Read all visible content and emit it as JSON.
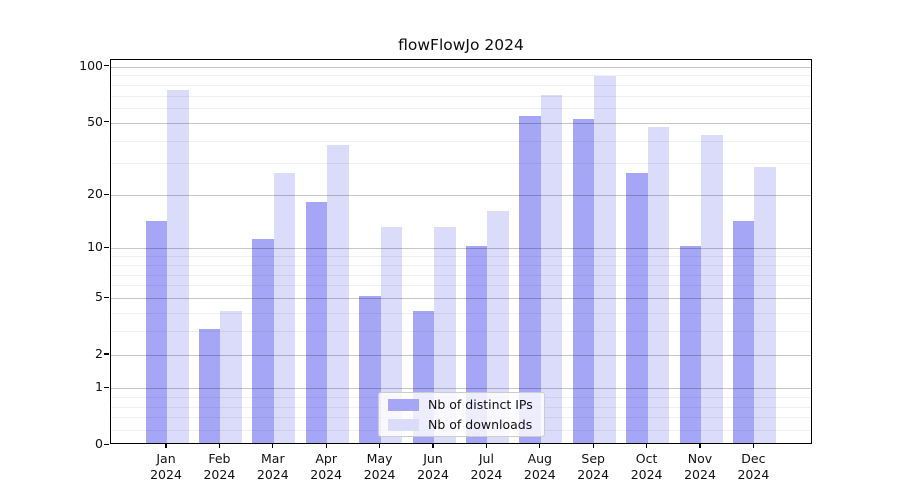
{
  "title": "flowFlowJo 2024",
  "chart_data": {
    "type": "bar",
    "title": "flowFlowJo 2024",
    "categories": [
      "Jan 2024",
      "Feb 2024",
      "Mar 2024",
      "Apr 2024",
      "May 2024",
      "Jun 2024",
      "Jul 2024",
      "Aug 2024",
      "Sep 2024",
      "Oct 2024",
      "Nov 2024",
      "Dec 2024"
    ],
    "series": [
      {
        "name": "Nb of distinct IPs",
        "color": "#a6a6f7",
        "values": [
          14,
          3,
          11,
          18,
          5,
          4,
          10,
          53,
          51,
          26,
          10,
          14
        ]
      },
      {
        "name": "Nb of downloads",
        "color": "#dbdbfa",
        "values": [
          73,
          4,
          26,
          37,
          13,
          13,
          16,
          69,
          87,
          46,
          42,
          28
        ]
      }
    ],
    "xlabel": "",
    "ylabel": "",
    "yscale": "log1p",
    "ylim": [
      0,
      110
    ],
    "y_major_ticks": [
      0,
      1,
      2,
      5,
      10,
      20,
      50,
      100
    ],
    "y_minor_ticks": [
      0.2,
      0.4,
      0.6,
      0.8,
      3,
      4,
      6,
      7,
      8,
      9,
      30,
      40,
      60,
      70,
      80,
      90
    ],
    "grid": true,
    "legend_position": "bottom-center"
  }
}
